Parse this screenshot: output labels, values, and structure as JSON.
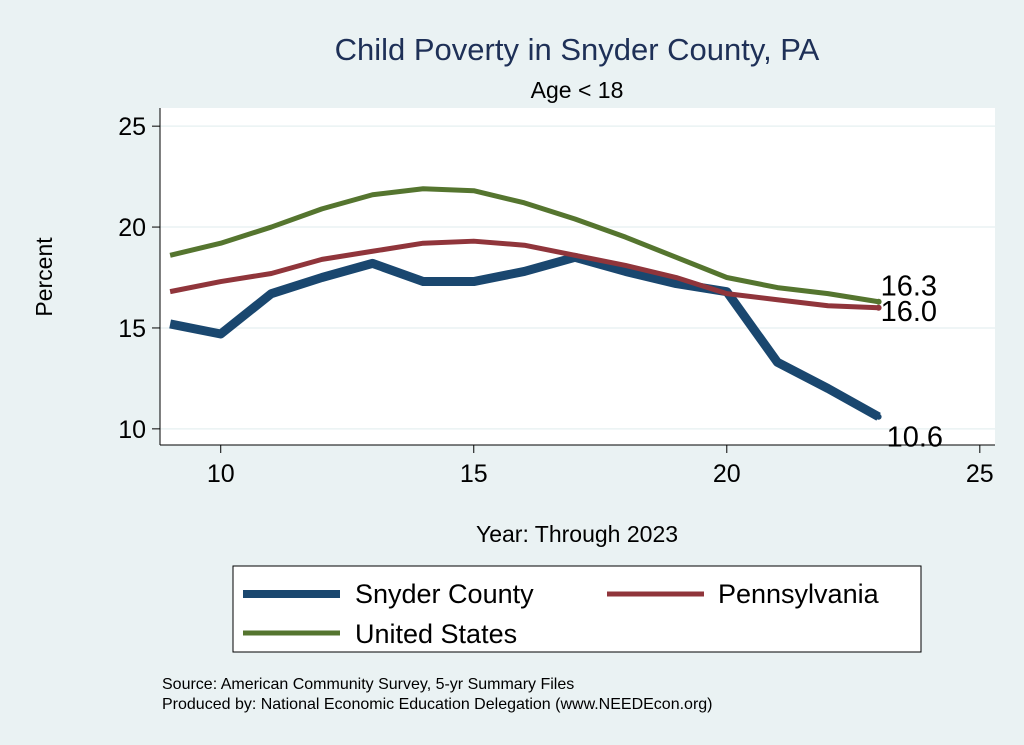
{
  "chart_data": {
    "type": "line",
    "title": "Child Poverty in Snyder County, PA",
    "subtitle": "Age < 18",
    "xlabel": "Year: Through 2023",
    "ylabel": "Percent",
    "xlim": [
      8.8,
      25.3
    ],
    "ylim": [
      9.2,
      25.9
    ],
    "xticks": [
      10,
      15,
      20,
      25
    ],
    "yticks": [
      10,
      15,
      20,
      25
    ],
    "grid": true,
    "legend_position": "bottom",
    "x": [
      9,
      10,
      11,
      12,
      13,
      14,
      15,
      16,
      17,
      18,
      19,
      20,
      21,
      22,
      23
    ],
    "series": [
      {
        "name": "Snyder County",
        "color": "#1a476f",
        "values": [
          15.2,
          14.7,
          16.7,
          17.5,
          18.2,
          17.3,
          17.3,
          17.8,
          18.5,
          17.8,
          17.2,
          16.8,
          13.3,
          12.0,
          10.6
        ],
        "end_label": "10.6"
      },
      {
        "name": "Pennsylvania",
        "color": "#90353b",
        "values": [
          16.8,
          17.3,
          17.7,
          18.4,
          18.8,
          19.2,
          19.3,
          19.1,
          18.6,
          18.1,
          17.5,
          16.7,
          16.4,
          16.1,
          16.0
        ],
        "end_label": "16.0"
      },
      {
        "name": "United States",
        "color": "#55752f",
        "values": [
          18.6,
          19.2,
          20.0,
          20.9,
          21.6,
          21.9,
          21.8,
          21.2,
          20.4,
          19.5,
          18.5,
          17.5,
          17.0,
          16.7,
          16.3
        ],
        "end_label": "16.3"
      }
    ],
    "notes": [
      "Source: American Community Survey, 5-yr Summary Files",
      "Produced by: National Economic Education Delegation (www.NEEDEcon.org)"
    ]
  }
}
